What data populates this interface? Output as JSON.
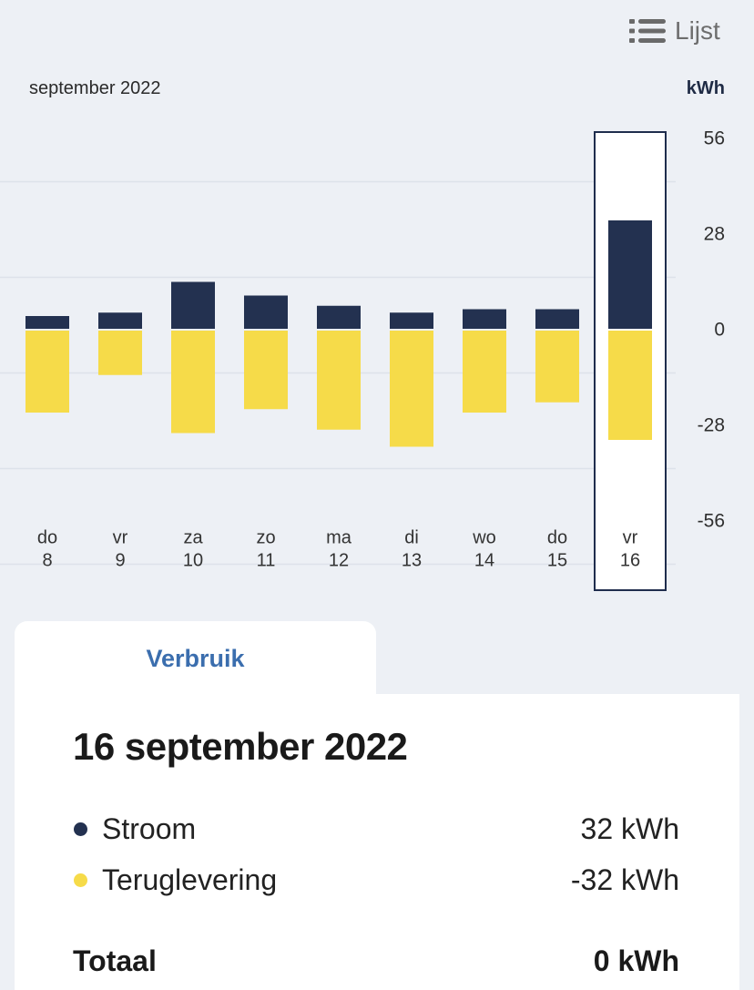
{
  "header": {
    "list_label": "Lijst",
    "list_icon": "list-icon"
  },
  "theme": {
    "background": "#edf0f5",
    "accent": "#3b6eae",
    "highlight_border": "#1f2d4d"
  },
  "chart_data": {
    "type": "bar",
    "title": "september 2022",
    "xlabel": "",
    "ylabel": "kWh",
    "ylim": [
      -56,
      56
    ],
    "yticks": [
      56,
      28,
      0,
      -28,
      -56
    ],
    "grid": true,
    "stacked": true,
    "selected_index": 8,
    "categories": [
      {
        "day": "do",
        "date": "8"
      },
      {
        "day": "vr",
        "date": "9"
      },
      {
        "day": "za",
        "date": "10"
      },
      {
        "day": "zo",
        "date": "11"
      },
      {
        "day": "ma",
        "date": "12"
      },
      {
        "day": "di",
        "date": "13"
      },
      {
        "day": "wo",
        "date": "14"
      },
      {
        "day": "do",
        "date": "15"
      },
      {
        "day": "vr",
        "date": "16"
      }
    ],
    "series": [
      {
        "name": "Stroom",
        "color": "#233150",
        "values": [
          4,
          5,
          14,
          10,
          7,
          5,
          6,
          6,
          32
        ]
      },
      {
        "name": "Teruglevering",
        "color": "#f6db49",
        "values": [
          -24,
          -13,
          -30,
          -23,
          -29,
          -34,
          -24,
          -21,
          -32
        ]
      }
    ]
  },
  "tabs": [
    {
      "label": "Verbruik",
      "active": true
    }
  ],
  "detail": {
    "date": "16 september 2022",
    "rows": [
      {
        "value": "32 kWh"
      },
      {
        "value": "-32 kWh"
      }
    ],
    "total_label": "Totaal",
    "total_value": "0 kWh"
  }
}
